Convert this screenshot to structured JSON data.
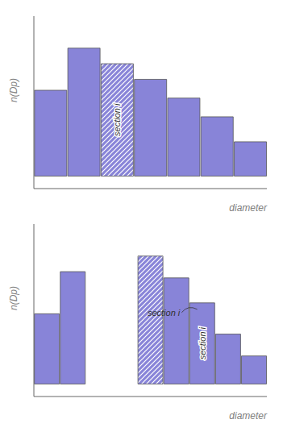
{
  "chart_data": [
    {
      "type": "bar",
      "xlabel": "diameter",
      "ylabel": "n(Dp)",
      "categories": [
        null,
        null,
        null,
        null,
        null,
        null,
        null
      ],
      "values": [
        0.55,
        0.82,
        0.72,
        0.62,
        0.5,
        0.38,
        0.22
      ],
      "ylim": [
        -0.08,
        1.025
      ],
      "tick_labels": false,
      "color": "#8884d8",
      "annotations": [
        {
          "text": "section i",
          "x": 2
        }
      ]
    },
    {
      "type": "bar",
      "xlabel": "diameter",
      "ylabel": "n(Dp)",
      "categories": [
        null,
        null,
        null,
        null,
        null,
        null,
        null,
        null,
        null
      ],
      "values": [
        0.45,
        0.72,
        0.0,
        0.0,
        0.82,
        0.68,
        0.52,
        0.32,
        0.18
      ],
      "ylim": [
        -0.08,
        1.025
      ],
      "tick_labels": false,
      "color": "#8884d8",
      "annotations": [
        {
          "text": "section i",
          "x": 4
        },
        {
          "text": "section i",
          "x": 4
        }
      ]
    }
  ]
}
